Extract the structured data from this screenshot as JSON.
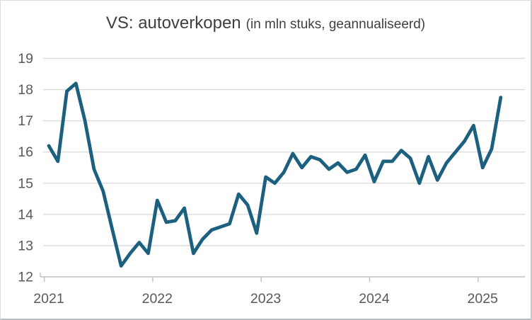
{
  "title": {
    "main": "VS: autoverkopen",
    "sub": "(in mln stuks, geannualiseerd)"
  },
  "colors": {
    "line": "#1b607f",
    "grid": "#d9d9d9",
    "axis": "#bfbfbf",
    "tick_text": "#595959",
    "title_text": "#3f3f3f",
    "background": "#ffffff"
  },
  "chart_data": {
    "type": "line",
    "title": "VS: autoverkopen (in mln stuks, geannualiseerd)",
    "xlabel": "",
    "ylabel": "",
    "ylim": [
      12,
      19
    ],
    "y_ticks": [
      19,
      18,
      17,
      16,
      15,
      14,
      13,
      12
    ],
    "x_tick_labels": [
      "2021",
      "2022",
      "2023",
      "2024",
      "2025"
    ],
    "grid": "horizontal",
    "legend_position": "none",
    "frequency": "monthly",
    "period": {
      "start": "2021-01",
      "end": "2025-03"
    },
    "series": [
      {
        "name": "autoverkopen (mln stuks, geannualiseerd)",
        "values": [
          16.2,
          15.7,
          17.95,
          18.2,
          17.0,
          15.45,
          14.75,
          13.55,
          12.35,
          12.75,
          13.1,
          12.75,
          14.45,
          13.75,
          13.8,
          14.2,
          12.75,
          13.2,
          13.5,
          13.6,
          13.7,
          14.65,
          14.3,
          13.4,
          15.2,
          15.0,
          15.35,
          15.95,
          15.5,
          15.85,
          15.75,
          15.45,
          15.65,
          15.35,
          15.45,
          15.9,
          15.05,
          15.7,
          15.7,
          16.05,
          15.8,
          15.0,
          15.85,
          15.1,
          15.65,
          16.0,
          16.35,
          16.85,
          15.5,
          16.1,
          17.75
        ]
      }
    ]
  }
}
